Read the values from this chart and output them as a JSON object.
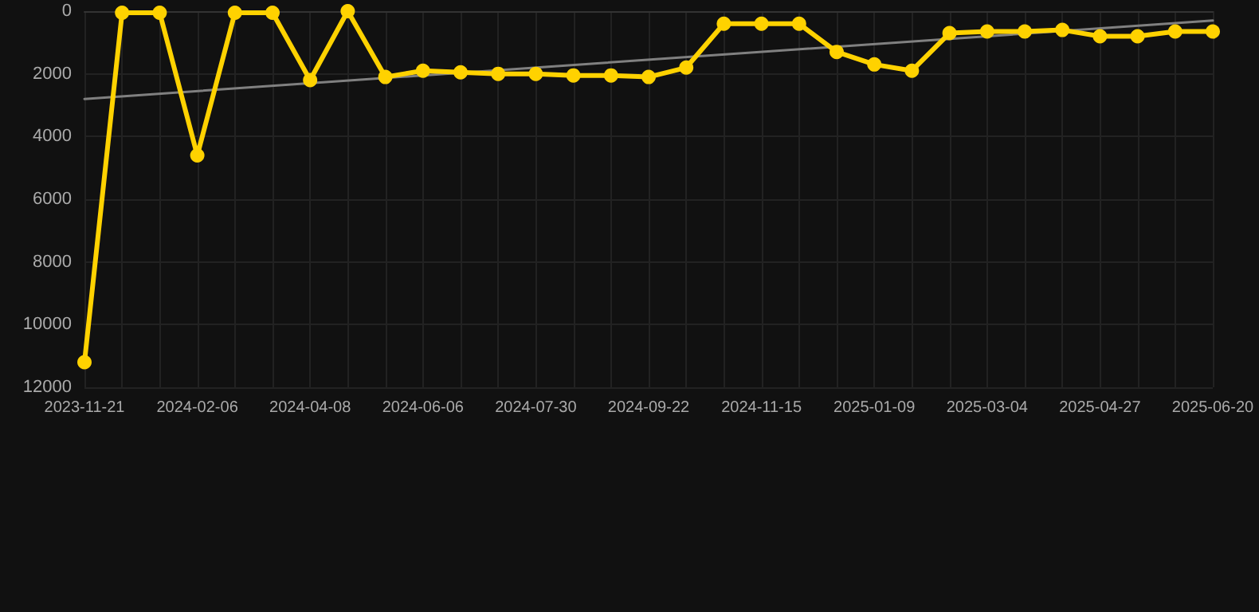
{
  "chart_data": {
    "type": "line",
    "categories": [
      "2023-11-21",
      null,
      null,
      "2024-02-06",
      null,
      null,
      "2024-04-08",
      null,
      null,
      "2024-06-06",
      null,
      null,
      "2024-07-30",
      null,
      null,
      "2024-09-22",
      null,
      null,
      "2024-11-15",
      null,
      null,
      "2025-01-09",
      null,
      null,
      "2025-03-04",
      null,
      null,
      "2025-04-27",
      null,
      null,
      "2025-06-20"
    ],
    "series": [
      {
        "color": "#ffd200",
        "values": [
          11200,
          50,
          50,
          4600,
          50,
          50,
          2200,
          0,
          2100,
          1900,
          1950,
          2000,
          2000,
          2050,
          2050,
          2100,
          1800,
          400,
          400,
          400,
          1300,
          1700,
          1900,
          700,
          650,
          650,
          600,
          800,
          800,
          650,
          650
        ]
      },
      {
        "type": "line",
        "color": "#808080",
        "values": [
          2800,
          null,
          null,
          null,
          null,
          null,
          null,
          null,
          null,
          null,
          null,
          null,
          null,
          null,
          null,
          null,
          null,
          null,
          null,
          null,
          null,
          null,
          null,
          null,
          null,
          null,
          null,
          null,
          null,
          null,
          300
        ],
        "marker": "none"
      }
    ],
    "ylim": [
      12000,
      0
    ],
    "yticks": [
      0,
      2000,
      4000,
      6000,
      8000,
      10000,
      12000
    ],
    "grid": true,
    "marker": "circle",
    "line_style": "solid"
  }
}
